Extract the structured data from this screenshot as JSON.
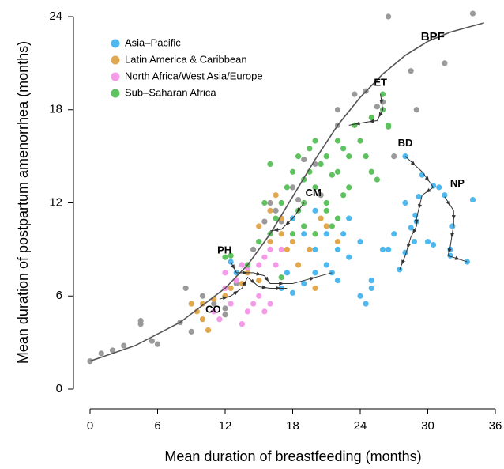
{
  "chart_data": {
    "type": "scatter",
    "xlabel": "Mean duration of breastfeeding (months)",
    "ylabel": "Mean duration of postpartum amenorrhea (months)",
    "xlim": [
      0,
      36
    ],
    "ylim": [
      0,
      24
    ],
    "xticks": [
      0,
      6,
      12,
      18,
      24,
      30,
      36
    ],
    "yticks": [
      0,
      6,
      12,
      18,
      24
    ],
    "legend": "upper left",
    "series": [
      {
        "color": "#9a9a9a",
        "x": [
          0,
          1,
          2,
          3,
          4.5,
          4.5,
          5.5,
          6,
          8,
          8.5,
          9,
          9,
          10,
          11,
          12,
          12,
          13,
          15,
          15.5,
          16,
          16.5,
          17,
          18,
          19,
          20,
          22,
          22,
          23.5,
          24.5,
          26.5,
          27,
          28.5,
          29,
          31.5,
          34,
          25.5,
          26,
          20.5,
          18.5,
          14.5
        ],
        "values": [
          1.8,
          2.3,
          2.5,
          2.8,
          4.2,
          4.4,
          3.1,
          2.9,
          4.3,
          6.5,
          5.5,
          3.7,
          6,
          5.5,
          5.2,
          4.8,
          6.8,
          9.5,
          10.8,
          12,
          11.5,
          10.8,
          13,
          14.8,
          14.5,
          17,
          18,
          19,
          19.2,
          24,
          15,
          20.5,
          18,
          21,
          24.2,
          18.2,
          18.5,
          12.5,
          12.2,
          9
        ]
      },
      {
        "name": "Asia–Pacific",
        "color": "#4fb9ef",
        "x": [
          12.5,
          13,
          17,
          18,
          19,
          20,
          21,
          22,
          23,
          24,
          24,
          24.5,
          25,
          22,
          22.5,
          20,
          21,
          23,
          26,
          26.5,
          17.5,
          18,
          19,
          20,
          21.5,
          25,
          28,
          29.5,
          30.5,
          29.2,
          28.9,
          28.5,
          28.8,
          28,
          27.5,
          29,
          30,
          30.5,
          31.5,
          32.2,
          32,
          32,
          33.5,
          34,
          31,
          28,
          27
        ],
        "values": [
          8.2,
          7.5,
          6.5,
          6.2,
          6.8,
          7.5,
          8,
          7,
          8.5,
          9.5,
          6,
          5.5,
          7,
          9,
          10,
          9,
          10,
          11,
          9,
          9,
          7.5,
          11,
          10,
          11.5,
          7.5,
          6.5,
          15,
          13.8,
          13.1,
          12.4,
          11.2,
          10.4,
          9.5,
          8.8,
          7.7,
          10.8,
          9.5,
          9.3,
          12.5,
          10.5,
          9,
          8.6,
          8.2,
          12.2,
          13,
          12,
          10
        ]
      },
      {
        "name": "Latin America & Caribbean",
        "color": "#e2a850",
        "x": [
          9,
          9.5,
          10,
          10.5,
          10,
          11,
          12,
          12.5,
          13.5,
          14,
          15,
          15,
          16,
          16.5,
          17,
          17.5,
          18,
          19,
          20,
          20.5,
          21,
          19.5,
          20,
          18.5,
          22,
          17,
          16
        ],
        "values": [
          5.5,
          5,
          4.5,
          3.8,
          5.5,
          5.8,
          6,
          6.5,
          6.8,
          7.5,
          7,
          10.5,
          11.5,
          12.5,
          11,
          9,
          9.5,
          10.5,
          10,
          11,
          10.5,
          9,
          6.5,
          8,
          9.5,
          10,
          9.5
        ]
      },
      {
        "name": "North Africa/West Asia/Europe",
        "color": "#f59ae9",
        "x": [
          11,
          11.5,
          12,
          12.5,
          13,
          13.5,
          14,
          14.5,
          15,
          15.5,
          16,
          16.5,
          17,
          16,
          15.5,
          14,
          13.5,
          12,
          15
        ],
        "values": [
          5,
          4.5,
          6.5,
          5.5,
          7,
          4.2,
          5,
          5.5,
          6,
          5,
          5.5,
          8,
          9,
          9,
          8.5,
          7.8,
          8,
          7.5,
          8
        ]
      },
      {
        "name": "Sub–Saharan Africa",
        "color": "#5ec35f",
        "x": [
          12,
          12.5,
          14,
          15,
          16,
          16,
          17,
          17.5,
          18,
          18.5,
          18.5,
          19,
          19,
          19.5,
          19.5,
          20,
          20,
          20.5,
          21,
          21,
          21.5,
          22,
          22,
          22.5,
          23,
          23,
          23.5,
          24,
          24.5,
          25,
          25,
          25.5,
          26,
          26.5,
          26,
          26.5,
          22,
          21,
          20,
          19,
          18,
          17,
          16.5,
          15.5,
          21.5,
          22.5
        ],
        "values": [
          8.5,
          8.6,
          8,
          9.5,
          10,
          14.5,
          12,
          13,
          14,
          11.5,
          15,
          13.5,
          12,
          14,
          15.5,
          13,
          16,
          14.5,
          15,
          12,
          13.8,
          14,
          16,
          12.5,
          15,
          13,
          17,
          16,
          15,
          17.5,
          14,
          13.5,
          18,
          17,
          19,
          16.9,
          11,
          11.5,
          10,
          10.5,
          10,
          7.2,
          11,
          12,
          10.5,
          15.5
        ]
      }
    ],
    "curve": {
      "name": "BPF",
      "x": [
        0,
        4,
        8,
        12,
        14,
        16,
        18,
        20,
        22,
        24,
        26,
        28,
        30,
        32,
        34,
        35
      ],
      "values": [
        1.8,
        2.8,
        4.3,
        6.5,
        8,
        10,
        12.4,
        14.8,
        17,
        18.8,
        20.3,
        21.5,
        22.4,
        23,
        23.4,
        23.6
      ]
    },
    "trajectories": [
      {
        "label": "ET",
        "x": [
          25.8,
          26,
          25.5,
          24.5,
          23
        ],
        "values": [
          19,
          18,
          17.3,
          17.2,
          17
        ]
      },
      {
        "label": "BD",
        "x": [
          28,
          29.5,
          30.5,
          29.5,
          29,
          29,
          28.5,
          28,
          27.5
        ],
        "values": [
          15,
          14,
          13,
          12.5,
          11,
          10.5,
          9.8,
          8.6,
          7.7
        ]
      },
      {
        "label": "NP",
        "x": [
          31.5,
          32.3,
          32.3,
          32,
          31.8,
          33.5
        ],
        "values": [
          12.4,
          11.5,
          10.6,
          9.2,
          8.6,
          8.2
        ]
      },
      {
        "label": "CM",
        "x": [
          19,
          18,
          17,
          16
        ],
        "values": [
          12,
          11,
          10.3,
          10.2
        ]
      },
      {
        "label": "PH",
        "x": [
          12.5,
          13,
          14.5,
          15.5,
          16,
          18,
          21.5
        ],
        "values": [
          8.2,
          7.5,
          7.5,
          7.3,
          6.8,
          6.8,
          7.5
        ]
      },
      {
        "label": "CO",
        "x": [
          11.5,
          12.5,
          13.5,
          14,
          15,
          16,
          17.5
        ],
        "values": [
          5.8,
          6,
          6.5,
          7.2,
          6.6,
          6.5,
          6.5
        ]
      }
    ]
  }
}
